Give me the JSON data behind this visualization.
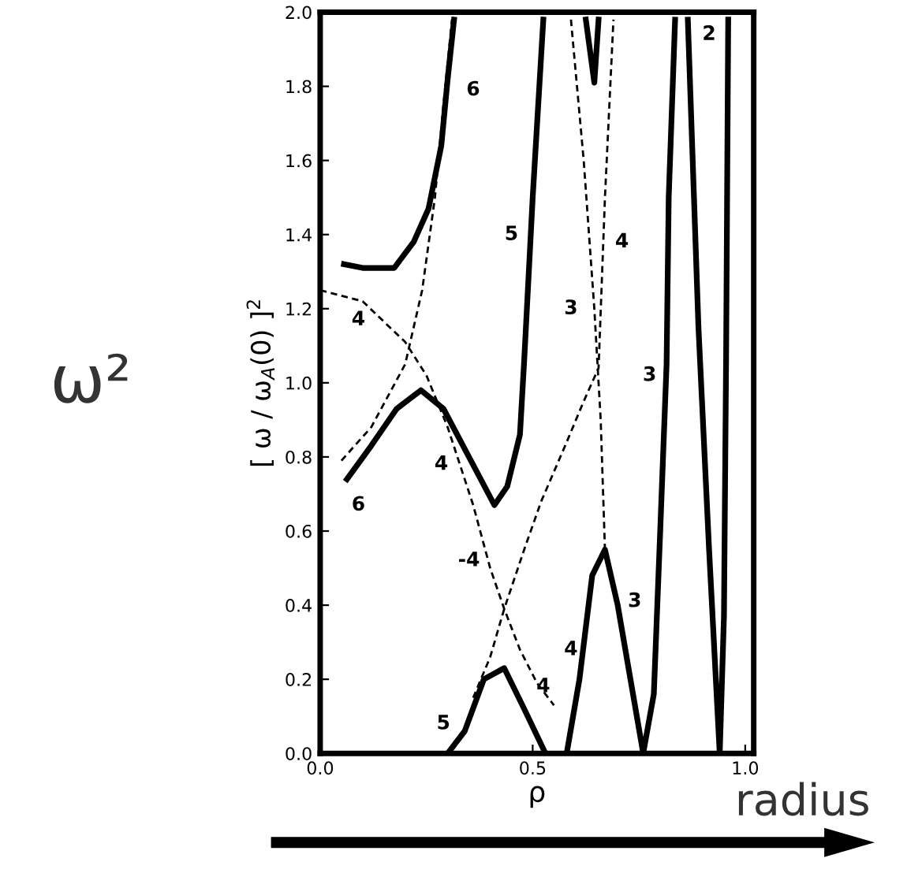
{
  "chart_data": {
    "type": "line",
    "xlabel": "ρ",
    "ylabel": "[ ω / ω$_{A}$(0) ]$^{2}$",
    "xlim": [
      0,
      1.02
    ],
    "ylim": [
      0,
      2.0
    ],
    "xticks": [
      {
        "value": 0,
        "label": "0.0"
      },
      {
        "value": 0.5,
        "label": "0.5"
      },
      {
        "value": 1.0,
        "label": "1.0"
      }
    ],
    "yticks": [
      {
        "value": 0,
        "label": "0.0"
      },
      {
        "value": 0.2,
        "label": "0.2"
      },
      {
        "value": 0.4,
        "label": "0.4"
      },
      {
        "value": 0.6,
        "label": "0.6"
      },
      {
        "value": 0.8,
        "label": "0.8"
      },
      {
        "value": 1.0,
        "label": "1.0"
      },
      {
        "value": 1.2,
        "label": "1.2"
      },
      {
        "value": 1.4,
        "label": "1.4"
      },
      {
        "value": 1.6,
        "label": "1.6"
      },
      {
        "value": 1.8,
        "label": "1.8"
      },
      {
        "value": 2.0,
        "label": "2.0"
      }
    ],
    "grid": false,
    "legend": false,
    "marker": "none",
    "series": [
      {
        "color": "#000000",
        "line_style": "solid",
        "x": [
          0.056,
          0.1,
          0.174,
          0.22,
          0.255,
          0.285,
          0.3,
          0.315
        ],
        "values": [
          1.32,
          1.31,
          1.31,
          1.38,
          1.47,
          1.64,
          1.82,
          1.98
        ]
      },
      {
        "color": "#000000",
        "line_style": "solid",
        "x": [
          0.063,
          0.12,
          0.18,
          0.237,
          0.29,
          0.35,
          0.41,
          0.44,
          0.47,
          0.48,
          0.5,
          0.525
        ],
        "values": [
          0.74,
          0.83,
          0.93,
          0.98,
          0.93,
          0.8,
          0.67,
          0.72,
          0.86,
          1.06,
          1.5,
          1.98
        ]
      },
      {
        "color": "#000000",
        "line_style": "solid",
        "x": [
          0.3,
          0.34,
          0.385,
          0.433,
          0.48,
          0.53
        ],
        "values": [
          0.0,
          0.06,
          0.2,
          0.23,
          0.12,
          0.0
        ]
      },
      {
        "color": "#000000",
        "line_style": "solid",
        "x": [
          0.58,
          0.61,
          0.64,
          0.67,
          0.7,
          0.73,
          0.76,
          0.785,
          0.8,
          0.815,
          0.82,
          0.835
        ],
        "values": [
          0.0,
          0.2,
          0.48,
          0.55,
          0.4,
          0.2,
          0.0,
          0.16,
          0.6,
          1.05,
          1.5,
          1.98
        ]
      },
      {
        "color": "#000000",
        "line_style": "solid",
        "x": [
          0.865,
          0.89,
          0.915,
          0.94,
          0.95,
          0.955,
          0.96
        ],
        "values": [
          1.98,
          1.15,
          0.55,
          0.0,
          0.37,
          1.06,
          1.98
        ]
      },
      {
        "color": "#000000",
        "line_style": "solid",
        "x": [
          0.625,
          0.645,
          0.655
        ],
        "values": [
          1.98,
          1.81,
          1.98
        ]
      },
      {
        "color": "#000000",
        "line_style": "dashed",
        "x": [
          0,
          0.1,
          0.2,
          0.25,
          0.3,
          0.36,
          0.4,
          0.433,
          0.47,
          0.51,
          0.55
        ],
        "values": [
          1.25,
          1.22,
          1.11,
          1.02,
          0.88,
          0.67,
          0.5,
          0.39,
          0.28,
          0.19,
          0.13
        ]
      },
      {
        "color": "#000000",
        "line_style": "dashed",
        "x": [
          0.05,
          0.12,
          0.2,
          0.24,
          0.27,
          0.29,
          0.31
        ],
        "values": [
          0.79,
          0.88,
          1.05,
          1.25,
          1.5,
          1.75,
          1.98
        ]
      },
      {
        "color": "#000000",
        "line_style": "dashed",
        "x": [
          0.36,
          0.4,
          0.433,
          0.48,
          0.52,
          0.58,
          0.62,
          0.655,
          0.67,
          0.69
        ],
        "values": [
          0.15,
          0.26,
          0.39,
          0.55,
          0.68,
          0.84,
          0.95,
          1.04,
          1.5,
          1.98
        ]
      },
      {
        "color": "#000000",
        "line_style": "dashed",
        "x": [
          0.59,
          0.62,
          0.645,
          0.66,
          0.67
        ],
        "values": [
          1.98,
          1.6,
          1.2,
          0.9,
          0.55
        ]
      }
    ],
    "annotations": [
      "6",
      "5",
      "4",
      "3",
      "2",
      "4",
      "3",
      "4",
      "6",
      "-4",
      "4",
      "5",
      "4",
      "3",
      "ω²",
      "radius"
    ]
  }
}
